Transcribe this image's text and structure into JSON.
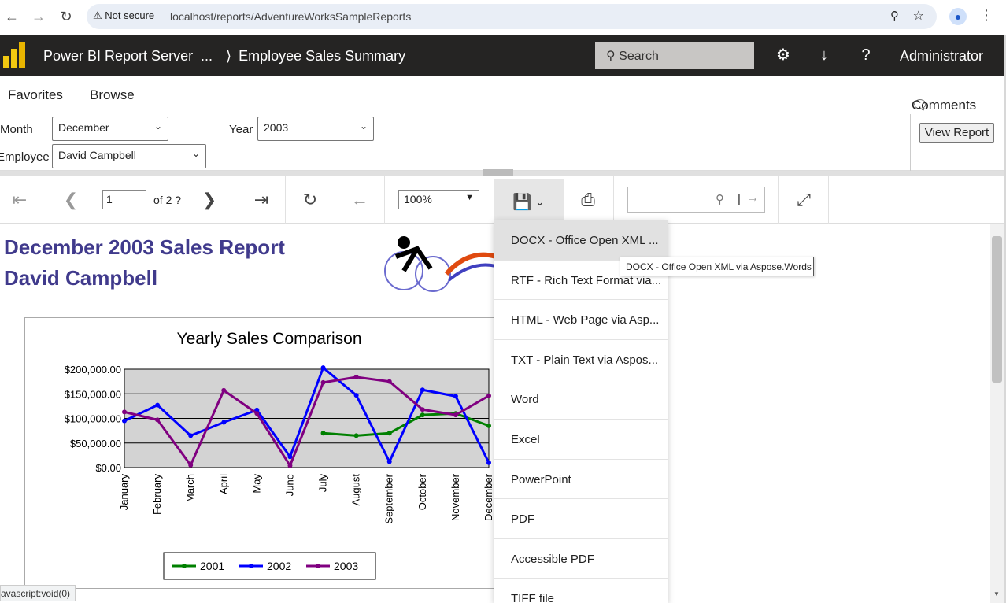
{
  "browser": {
    "security_label": "Not secure",
    "url": "localhost/reports/AdventureWorksSampleReports",
    "back_icon": "back-arrow-icon",
    "forward_icon": "forward-arrow-icon",
    "reload_icon": "reload-icon",
    "status_text": "avascript:void(0)"
  },
  "header": {
    "app_title": "Power BI Report Server",
    "breadcrumb_more": "...",
    "report_name": "Employee Sales Summary",
    "search_placeholder": "Search",
    "user": "Administrator"
  },
  "subnav": {
    "favorites": "Favorites",
    "browse": "Browse",
    "comments": "Comments"
  },
  "params": {
    "month_label": "Month",
    "month_value": "December",
    "year_label": "Year",
    "year_value": "2003",
    "employee_label": "Employee",
    "employee_value": "David Campbell",
    "view_report": "View Report"
  },
  "toolbar": {
    "page": "1",
    "page_of": "of 2 ?",
    "zoom": "100%"
  },
  "report": {
    "title_line1": "December 2003 Sales Report",
    "title_line2": "David Campbell"
  },
  "export_menu": {
    "items": [
      "DOCX - Office Open XML ...",
      "RTF - Rich Text Format via...",
      "HTML - Web Page via Asp...",
      "TXT - Plain Text via Aspos...",
      "Word",
      "Excel",
      "PowerPoint",
      "PDF",
      "Accessible PDF",
      "TIFF file"
    ],
    "tooltip": "DOCX - Office Open XML via Aspose.Words"
  },
  "chart_data": {
    "type": "line",
    "title": "Yearly Sales Comparison",
    "categories": [
      "January",
      "February",
      "March",
      "April",
      "May",
      "June",
      "July",
      "August",
      "September",
      "October",
      "November",
      "December"
    ],
    "y_tick_labels": [
      "$200,000.00",
      "$150,000.00",
      "$100,000.00",
      "$50,000.00",
      "$0.00"
    ],
    "ylim": [
      0,
      200000
    ],
    "legend_position": "bottom",
    "series": [
      {
        "name": "2001",
        "color": "#008000",
        "values": [
          null,
          null,
          null,
          null,
          null,
          null,
          70000,
          65000,
          70000,
          107000,
          110000,
          85000
        ]
      },
      {
        "name": "2002",
        "color": "#0000ff",
        "values": [
          95000,
          127000,
          65000,
          92000,
          117000,
          22000,
          203000,
          147000,
          12000,
          158000,
          145000,
          10000
        ]
      },
      {
        "name": "2003",
        "color": "#800080",
        "values": [
          113000,
          97000,
          5000,
          157000,
          110000,
          4000,
          173000,
          184000,
          175000,
          118000,
          107000,
          146000
        ]
      }
    ]
  }
}
